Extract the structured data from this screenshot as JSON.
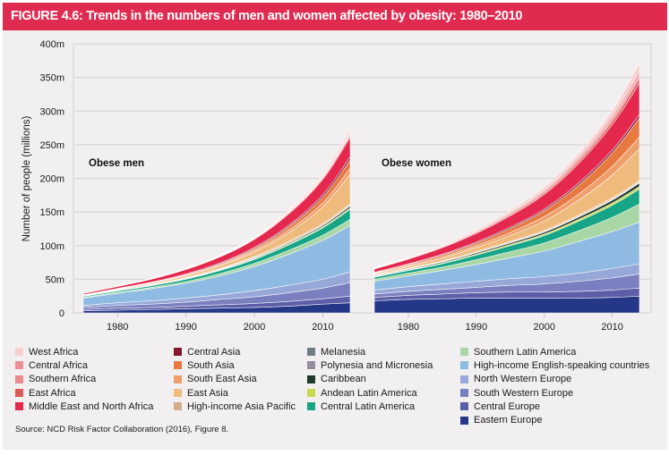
{
  "title": "FIGURE 4.6: Trends in the numbers of men and women affected by obesity: 1980–2010",
  "source": "Source: NCD Risk Factor Collaboration (2016), Figure 8.",
  "colors": {
    "title_bar": "#e02b50",
    "background": "#f1eff0",
    "grid": "#d8d6d7"
  },
  "chart_data": {
    "type": "area",
    "stacked": true,
    "title": "Trends in the numbers of men and women affected by obesity: 1980–2010",
    "ylabel": "Number of people (millions)",
    "xlabel": "",
    "ylim": [
      0,
      400
    ],
    "xlim": [
      1975,
      2014
    ],
    "grid": true,
    "y_ticks": [
      0,
      50,
      100,
      150,
      200,
      250,
      300,
      350,
      400
    ],
    "y_tick_labels": [
      "0",
      "50m",
      "100m",
      "150m",
      "200m",
      "250m",
      "300m",
      "350m",
      "400m"
    ],
    "x_ticks": [
      1980,
      1990,
      2000,
      2010
    ],
    "x_tick_labels": [
      "1980",
      "1990",
      "2000",
      "2010"
    ],
    "x": [
      1975,
      1980,
      1985,
      1990,
      1995,
      2000,
      2005,
      2010,
      2014
    ],
    "legend_placement": "bottom",
    "legend": [
      {
        "name": "West Africa",
        "color": "#f7cfcd"
      },
      {
        "name": "Central Africa",
        "color": "#ee8e97"
      },
      {
        "name": "Southern Africa",
        "color": "#ec8b8e"
      },
      {
        "name": "East Africa",
        "color": "#de5a55"
      },
      {
        "name": "Middle East and North Africa",
        "color": "#e5294e"
      },
      {
        "name": "Central Asia",
        "color": "#86182f"
      },
      {
        "name": "South Asia",
        "color": "#e77840"
      },
      {
        "name": "South East Asia",
        "color": "#ef9f69"
      },
      {
        "name": "East Asia",
        "color": "#eebb7c"
      },
      {
        "name": "High-income Asia Pacific",
        "color": "#d7aa8b"
      },
      {
        "name": "Melanesia",
        "color": "#6f7e84"
      },
      {
        "name": "Polynesia and Micronesia",
        "color": "#988aa1"
      },
      {
        "name": "Caribbean",
        "color": "#1e3a2a"
      },
      {
        "name": "Andean Latin America",
        "color": "#c6d84e"
      },
      {
        "name": "Central Latin America",
        "color": "#16a586"
      },
      {
        "name": "Southern Latin America",
        "color": "#a9d6a5"
      },
      {
        "name": "High-income English-speaking countries",
        "color": "#8fbae2"
      },
      {
        "name": "North Western Europe",
        "color": "#97a8d8"
      },
      {
        "name": "South Western Europe",
        "color": "#7a7fbf"
      },
      {
        "name": "Central Europe",
        "color": "#5c5ea8"
      },
      {
        "name": "Eastern Europe",
        "color": "#253888"
      }
    ],
    "panels": [
      {
        "label": "Obese men",
        "series": [
          {
            "name": "Eastern Europe",
            "values": [
              3,
              4,
              5,
              6,
              7,
              8,
              10,
              13,
              15
            ]
          },
          {
            "name": "Central Europe",
            "values": [
              2,
              3,
              3,
              4,
              5,
              6,
              7,
              8,
              10
            ]
          },
          {
            "name": "South Western Europe",
            "values": [
              3,
              4,
              5,
              6,
              8,
              10,
              13,
              16,
              20
            ]
          },
          {
            "name": "North Western Europe",
            "values": [
              3,
              4,
              5,
              6,
              7,
              9,
              11,
              13,
              16
            ]
          },
          {
            "name": "High-income English-speaking countries",
            "values": [
              11,
              14,
              18,
              22,
              28,
              36,
              46,
              58,
              69
            ]
          },
          {
            "name": "Southern Latin America",
            "values": [
              1,
              1.5,
              2,
              2.5,
              3.5,
              4.5,
              6,
              7.5,
              9
            ]
          },
          {
            "name": "Central Latin America",
            "values": [
              1.5,
              2,
              2.5,
              3.5,
              4.5,
              6,
              8,
              11,
              15
            ]
          },
          {
            "name": "Andean Latin America",
            "values": [
              0.2,
              0.3,
              0.4,
              0.6,
              0.8,
              1,
              1.3,
              1.6,
              2
            ]
          },
          {
            "name": "Caribbean",
            "values": [
              0.3,
              0.4,
              0.5,
              0.7,
              0.9,
              1.2,
              1.6,
              2,
              3
            ]
          },
          {
            "name": "Polynesia and Micronesia",
            "values": [
              0.1,
              0.1,
              0.1,
              0.2,
              0.2,
              0.3,
              0.3,
              0.4,
              0.5
            ]
          },
          {
            "name": "Melanesia",
            "values": [
              0.1,
              0.1,
              0.1,
              0.2,
              0.2,
              0.3,
              0.3,
              0.4,
              0.5
            ]
          },
          {
            "name": "High-income Asia Pacific",
            "values": [
              0.3,
              0.4,
              0.6,
              0.8,
              1,
              1.3,
              1.6,
              2,
              2
            ]
          },
          {
            "name": "East Asia",
            "values": [
              0.5,
              1,
              1.5,
              2.5,
              4,
              7,
              13,
              25,
              44
            ]
          },
          {
            "name": "South East Asia",
            "values": [
              0.3,
              0.5,
              0.7,
              1,
              1.5,
              2.5,
              4,
              6,
              9
            ]
          },
          {
            "name": "South Asia",
            "values": [
              0.3,
              0.5,
              0.7,
              1,
              1.5,
              2.5,
              4.5,
              8,
              12
            ]
          },
          {
            "name": "Central Asia",
            "values": [
              0.4,
              0.5,
              0.7,
              1,
              1.3,
              1.7,
              2.3,
              3.5,
              5
            ]
          },
          {
            "name": "Middle East and North Africa",
            "values": [
              2,
              3,
              4.5,
              6.5,
              9,
              12,
              17,
              23,
              29
            ]
          },
          {
            "name": "East Africa",
            "values": [
              0.1,
              0.2,
              0.3,
              0.5,
              0.7,
              1,
              1.5,
              2.2,
              3
            ]
          },
          {
            "name": "Southern Africa",
            "values": [
              0.2,
              0.3,
              0.4,
              0.5,
              0.7,
              0.9,
              1.2,
              1.5,
              2
            ]
          },
          {
            "name": "Central Africa",
            "values": [
              0.1,
              0.2,
              0.3,
              0.4,
              0.6,
              0.8,
              1.1,
              1.5,
              2
            ]
          },
          {
            "name": "West Africa",
            "values": [
              0.2,
              0.3,
              0.4,
              0.6,
              0.9,
              1.3,
              2,
              3,
              5
            ]
          }
        ]
      },
      {
        "label": "Obese women",
        "series": [
          {
            "name": "Eastern Europe",
            "values": [
              18,
              20,
              21,
              22,
              22,
              22,
              22,
              23,
              25
            ]
          },
          {
            "name": "Central Europe",
            "values": [
              5,
              6,
              7,
              8,
              9,
              9,
              10,
              11,
              12
            ]
          },
          {
            "name": "South Western Europe",
            "values": [
              5,
              6,
              7,
              8,
              10,
              12,
              15,
              18,
              21
            ]
          },
          {
            "name": "North Western Europe",
            "values": [
              6,
              7,
              8,
              9,
              10,
              11,
              12,
              14,
              15
            ]
          },
          {
            "name": "High-income English-speaking countries",
            "values": [
              13,
              16,
              20,
              25,
              31,
              38,
              47,
              55,
              62
            ]
          },
          {
            "name": "Southern Latin America",
            "values": [
              3,
              4,
              5,
              7,
              9,
              12,
              16,
              21,
              27
            ]
          },
          {
            "name": "Central Latin America",
            "values": [
              3,
              4,
              5,
              7,
              9,
              11,
              14,
              18,
              22
            ]
          },
          {
            "name": "Andean Latin America",
            "values": [
              0.7,
              0.9,
              1.1,
              1.4,
              1.8,
              2.2,
              2.8,
              3.4,
              4
            ]
          },
          {
            "name": "Caribbean",
            "values": [
              1,
              1.2,
              1.5,
              1.9,
              2.3,
              2.8,
              3.4,
              4.2,
              5
            ]
          },
          {
            "name": "Polynesia and Micronesia",
            "values": [
              0.2,
              0.2,
              0.3,
              0.3,
              0.4,
              0.5,
              0.6,
              0.7,
              0.8
            ]
          },
          {
            "name": "Melanesia",
            "values": [
              0.2,
              0.2,
              0.3,
              0.3,
              0.4,
              0.5,
              0.6,
              0.7,
              0.8
            ]
          },
          {
            "name": "High-income Asia Pacific",
            "values": [
              0.8,
              0.9,
              1,
              1.2,
              1.4,
              1.6,
              1.8,
              2,
              2
            ]
          },
          {
            "name": "East Asia",
            "values": [
              1.5,
              2.5,
              4,
              6,
              9,
              14,
              22,
              34,
              48
            ]
          },
          {
            "name": "South East Asia",
            "values": [
              1,
              1.5,
              2,
              3,
              4.5,
              6.5,
              9,
              13,
              17
            ]
          },
          {
            "name": "South Asia",
            "values": [
              1,
              1.5,
              2.5,
              3.5,
              5.5,
              8.5,
              13,
              20,
              28
            ]
          },
          {
            "name": "Central Asia",
            "values": [
              0.8,
              1,
              1.3,
              1.7,
              2.1,
              2.6,
              3.3,
              4,
              5
            ]
          },
          {
            "name": "Middle East and North Africa",
            "values": [
              5,
              7,
              10,
              13,
              17,
              22,
              29,
              38,
              47
            ]
          },
          {
            "name": "East Africa",
            "values": [
              0.4,
              0.6,
              0.9,
              1.3,
              1.8,
              2.5,
              3.5,
              5,
              7
            ]
          },
          {
            "name": "Southern Africa",
            "values": [
              0.8,
              1,
              1.3,
              1.7,
              2.2,
              2.8,
              3.5,
              4.3,
              5
            ]
          },
          {
            "name": "Central Africa",
            "values": [
              0.3,
              0.4,
              0.6,
              0.9,
              1.3,
              1.8,
              2.6,
              3.8,
              5
            ]
          },
          {
            "name": "West Africa",
            "values": [
              0.8,
              1.1,
              1.5,
              2,
              2.8,
              3.8,
              5.3,
              7.3,
              12
            ]
          }
        ]
      }
    ]
  }
}
